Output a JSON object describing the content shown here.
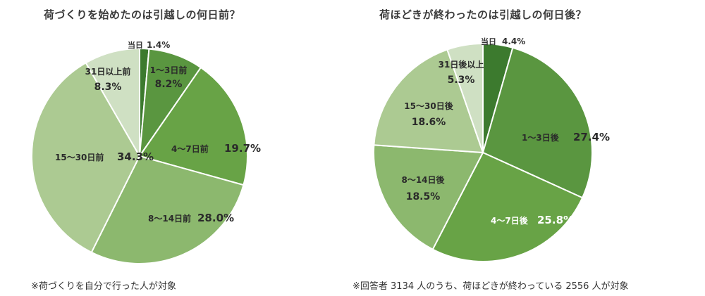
{
  "chart_data": [
    {
      "type": "pie",
      "title": "荷づくりを始めたのは引越しの何日前？",
      "footnote": "※荷づくりを自分で行った人が対象",
      "start_angle_deg": 0,
      "slices": [
        {
          "label": "当日",
          "value_text": "1.4%",
          "value": 1.4,
          "color": "#3c7a2e",
          "text_color": "#333333"
        },
        {
          "label": "1～3日前",
          "value_text": "8.2%",
          "value": 8.2,
          "color": "#5a9640",
          "text_color": "#2a2a2a"
        },
        {
          "label": "4～7日前",
          "value_text": "19.7%",
          "value": 19.7,
          "color": "#68a346",
          "text_color": "#2a2a2a"
        },
        {
          "label": "8～14日前",
          "value_text": "28.0%",
          "value": 28.0,
          "color": "#8cb86e",
          "text_color": "#2a2a2a"
        },
        {
          "label": "15～30日前",
          "value_text": "34.3%",
          "value": 34.3,
          "color": "#acca92",
          "text_color": "#2a2a2a"
        },
        {
          "label": "31日以上前",
          "value_text": "8.3%",
          "value": 8.3,
          "color": "#cfe0c3",
          "text_color": "#2a2a2a"
        }
      ]
    },
    {
      "type": "pie",
      "title": "荷ほどきが終わったのは引越しの何日後？",
      "footnote": "※回答者 3134 人のうち、荷ほどきが終わっている 2556 人が対象",
      "start_angle_deg": 0,
      "slices": [
        {
          "label": "当日",
          "value_text": "4.4%",
          "value": 4.4,
          "color": "#3c7a2e",
          "text_color": "#333333"
        },
        {
          "label": "1～3日後",
          "value_text": "27.4%",
          "value": 27.4,
          "color": "#5a9640",
          "text_color": "#2a2a2a"
        },
        {
          "label": "4～7日後",
          "value_text": "25.8%",
          "value": 25.8,
          "color": "#68a346",
          "text_color": "#ffffff"
        },
        {
          "label": "8～14日後",
          "value_text": "18.5%",
          "value": 18.5,
          "color": "#8cb86e",
          "text_color": "#2a2a2a"
        },
        {
          "label": "15～30日後",
          "value_text": "18.6%",
          "value": 18.6,
          "color": "#acca92",
          "text_color": "#2a2a2a"
        },
        {
          "label": "31日後以上",
          "value_text": "5.3%",
          "value": 5.3,
          "color": "#cfe0c3",
          "text_color": "#2a2a2a"
        }
      ]
    }
  ]
}
